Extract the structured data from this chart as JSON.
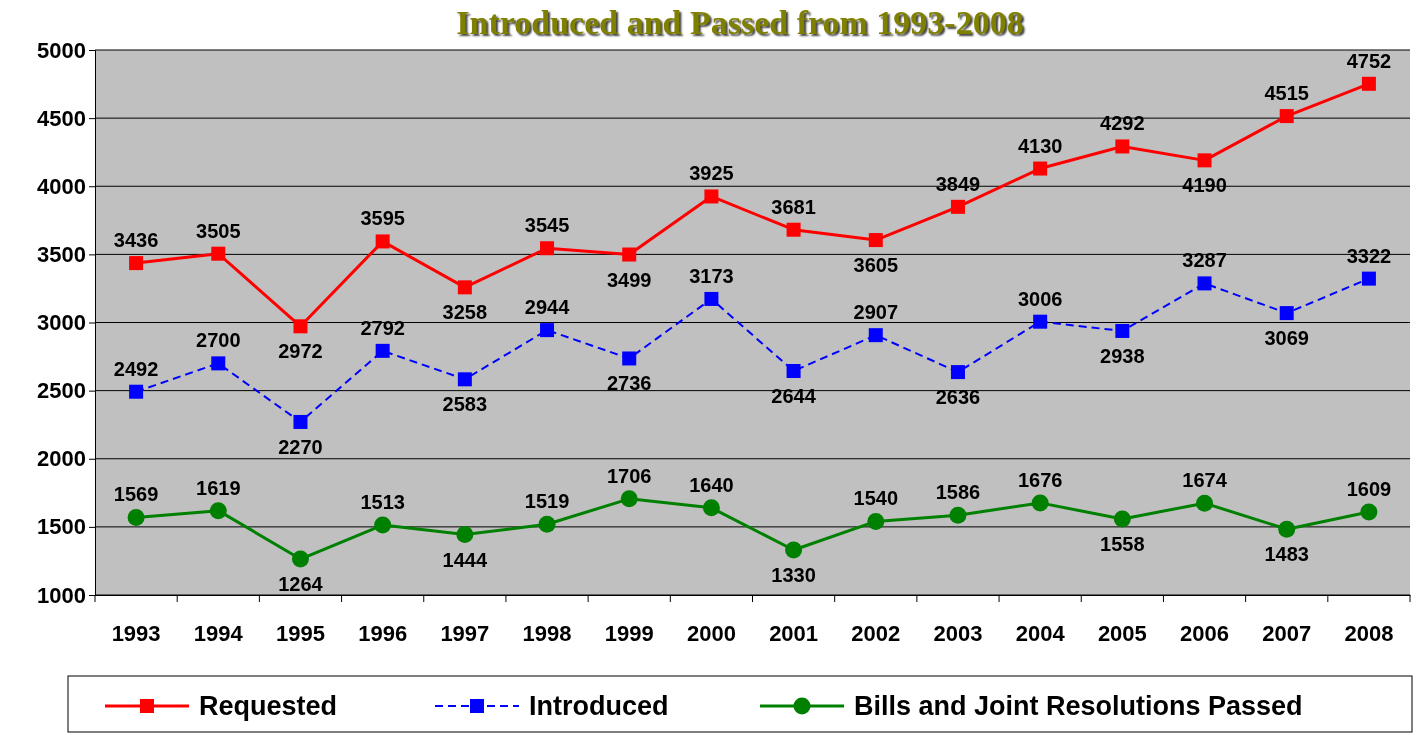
{
  "chart_data": {
    "type": "line",
    "title": "Introduced and Passed from 1993-2008",
    "categories": [
      "1993",
      "1994",
      "1995",
      "1996",
      "1997",
      "1998",
      "1999",
      "2000",
      "2001",
      "2002",
      "2003",
      "2004",
      "2005",
      "2006",
      "2007",
      "2008"
    ],
    "series": [
      {
        "name": "Requested",
        "color": "#ff0000",
        "marker": "square",
        "line_style": "solid",
        "values": [
          3436,
          3505,
          2972,
          3595,
          3258,
          3545,
          3499,
          3925,
          3681,
          3605,
          3849,
          4130,
          4292,
          4190,
          4515,
          4752
        ]
      },
      {
        "name": "Introduced",
        "color": "#0000ff",
        "marker": "square",
        "line_style": "dashed",
        "values": [
          2492,
          2700,
          2270,
          2792,
          2583,
          2944,
          2736,
          3173,
          2644,
          2907,
          2636,
          3006,
          2938,
          3287,
          3069,
          3322
        ]
      },
      {
        "name": "Bills and Joint Resolutions Passed",
        "color": "#008000",
        "marker": "circle",
        "line_style": "solid",
        "values": [
          1569,
          1619,
          1264,
          1513,
          1444,
          1519,
          1706,
          1640,
          1330,
          1540,
          1586,
          1676,
          1558,
          1674,
          1483,
          1609
        ]
      }
    ],
    "ylim": [
      1000,
      5000
    ],
    "yticks": [
      1000,
      1500,
      2000,
      2500,
      3000,
      3500,
      4000,
      4500,
      5000
    ],
    "grid": "y",
    "legend": "bottom",
    "data_labels": true
  }
}
